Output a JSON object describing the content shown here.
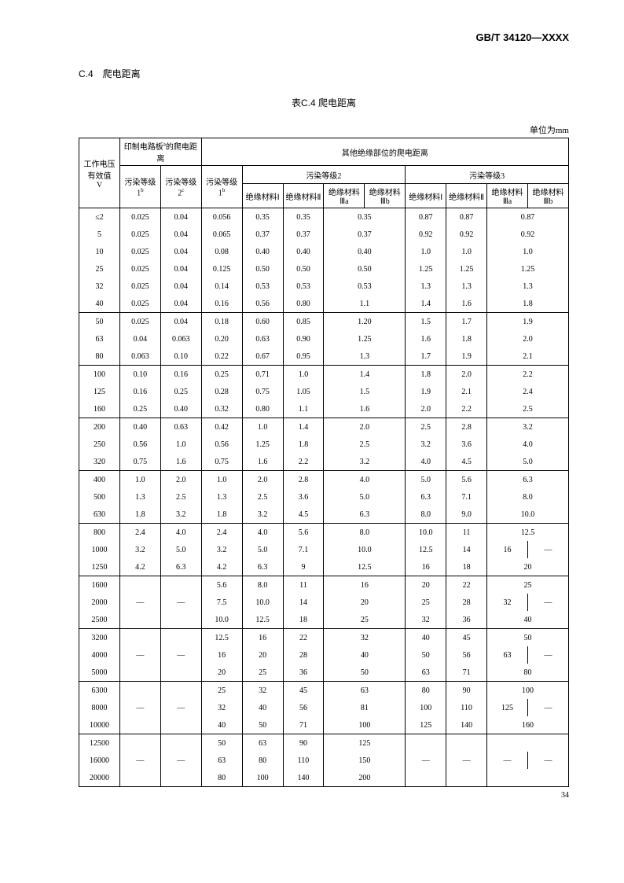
{
  "doc_id": "GB/T 34120—XXXX",
  "section_title": "C.4　爬电距离",
  "table_title": "表C.4 爬电距离",
  "unit_label": "单位为mm",
  "page_num": "34",
  "header": {
    "col_v": "工作电压有效值",
    "col_v_unit": "V",
    "pcb_group": "印制电路板",
    "pcb_group_suffix": "的爬电距离",
    "other_group": "其他绝缘部位的爬电距离",
    "pol_level1": "污染等级1",
    "pol_level2": "污染等级2",
    "pol_level3": "污染等级3",
    "pol_sup_b": "b",
    "pol_sup_c": "c",
    "mat1": "绝缘材料Ⅰ",
    "mat2": "绝缘材料Ⅱ",
    "mat3a": "绝缘材料Ⅲa",
    "mat3b": "绝缘材料Ⅲb",
    "pcb_sup_a": "a"
  },
  "groups": [
    {
      "rows": [
        {
          "v": "≤2",
          "c": [
            "0.025",
            "0.04",
            "0.056",
            "0.35",
            "0.35",
            "0.35",
            "",
            "0.87",
            "0.87",
            "0.87",
            ""
          ]
        },
        {
          "v": "5",
          "c": [
            "0.025",
            "0.04",
            "0.065",
            "0.37",
            "0.37",
            "0.37",
            "",
            "0.92",
            "0.92",
            "0.92",
            ""
          ]
        },
        {
          "v": "10",
          "c": [
            "0.025",
            "0.04",
            "0.08",
            "0.40",
            "0.40",
            "0.40",
            "",
            "1.0",
            "1.0",
            "1.0",
            ""
          ]
        },
        {
          "v": "25",
          "c": [
            "0.025",
            "0.04",
            "0.125",
            "0.50",
            "0.50",
            "0.50",
            "",
            "1.25",
            "1.25",
            "1.25",
            ""
          ]
        },
        {
          "v": "32",
          "c": [
            "0.025",
            "0.04",
            "0.14",
            "0.53",
            "0.53",
            "0.53",
            "",
            "1.3",
            "1.3",
            "1.3",
            ""
          ]
        },
        {
          "v": "40",
          "c": [
            "0.025",
            "0.04",
            "0.16",
            "0.56",
            "0.80",
            "1.1",
            "",
            "1.4",
            "1.6",
            "1.8",
            ""
          ]
        }
      ]
    },
    {
      "rows": [
        {
          "v": "50",
          "c": [
            "0.025",
            "0.04",
            "0.18",
            "0.60",
            "0.85",
            "1.20",
            "",
            "1.5",
            "1.7",
            "1.9",
            ""
          ]
        },
        {
          "v": "63",
          "c": [
            "0.04",
            "0.063",
            "0.20",
            "0.63",
            "0.90",
            "1.25",
            "",
            "1.6",
            "1.8",
            "2.0",
            ""
          ]
        },
        {
          "v": "80",
          "c": [
            "0.063",
            "0.10",
            "0.22",
            "0.67",
            "0.95",
            "1.3",
            "",
            "1.7",
            "1.9",
            "2.1",
            ""
          ]
        }
      ]
    },
    {
      "rows": [
        {
          "v": "100",
          "c": [
            "0.10",
            "0.16",
            "0.25",
            "0.71",
            "1.0",
            "1.4",
            "",
            "1.8",
            "2.0",
            "2.2",
            ""
          ]
        },
        {
          "v": "125",
          "c": [
            "0.16",
            "0.25",
            "0.28",
            "0.75",
            "1.05",
            "1.5",
            "",
            "1.9",
            "2.1",
            "2.4",
            ""
          ]
        },
        {
          "v": "160",
          "c": [
            "0.25",
            "0.40",
            "0.32",
            "0.80",
            "1.1",
            "1.6",
            "",
            "2.0",
            "2.2",
            "2.5",
            ""
          ]
        }
      ]
    },
    {
      "rows": [
        {
          "v": "200",
          "c": [
            "0.40",
            "0.63",
            "0.42",
            "1.0",
            "1.4",
            "2.0",
            "",
            "2.5",
            "2.8",
            "3.2",
            ""
          ]
        },
        {
          "v": "250",
          "c": [
            "0.56",
            "1.0",
            "0.56",
            "1.25",
            "1.8",
            "2.5",
            "",
            "3.2",
            "3.6",
            "4.0",
            ""
          ]
        },
        {
          "v": "320",
          "c": [
            "0.75",
            "1.6",
            "0.75",
            "1.6",
            "2.2",
            "3.2",
            "",
            "4.0",
            "4.5",
            "5.0",
            ""
          ]
        }
      ]
    },
    {
      "rows": [
        {
          "v": "400",
          "c": [
            "1.0",
            "2.0",
            "1.0",
            "2.0",
            "2.8",
            "4.0",
            "",
            "5.0",
            "5.6",
            "6.3",
            ""
          ]
        },
        {
          "v": "500",
          "c": [
            "1.3",
            "2.5",
            "1.3",
            "2.5",
            "3.6",
            "5.0",
            "",
            "6.3",
            "7.1",
            "8.0",
            ""
          ]
        },
        {
          "v": "630",
          "c": [
            "1.8",
            "3.2",
            "1.8",
            "3.2",
            "4.5",
            "6.3",
            "",
            "8.0",
            "9.0",
            "10.0",
            ""
          ]
        }
      ]
    },
    {
      "rows": [
        {
          "v": "800",
          "c": [
            "2.4",
            "4.0",
            "2.4",
            "4.0",
            "5.6",
            "8.0",
            "",
            "10.0",
            "11",
            "12.5",
            ""
          ]
        },
        {
          "v": "1000",
          "c": [
            "3.2",
            "5.0",
            "3.2",
            "5.0",
            "7.1",
            "10.0",
            "",
            "12.5",
            "14",
            "16",
            "—"
          ]
        },
        {
          "v": "1250",
          "c": [
            "4.2",
            "6.3",
            "4.2",
            "6.3",
            "9",
            "12.5",
            "",
            "16",
            "18",
            "20",
            ""
          ]
        }
      ]
    },
    {
      "rows": [
        {
          "v": "1600",
          "c": [
            "",
            "",
            "5.6",
            "8.0",
            "11",
            "16",
            "",
            "20",
            "22",
            "25",
            ""
          ]
        },
        {
          "v": "2000",
          "c": [
            "—",
            "—",
            "7.5",
            "10.0",
            "14",
            "20",
            "",
            "25",
            "28",
            "32",
            "—"
          ]
        },
        {
          "v": "2500",
          "c": [
            "",
            "",
            "10.0",
            "12.5",
            "18",
            "25",
            "",
            "32",
            "36",
            "40",
            ""
          ]
        }
      ]
    },
    {
      "rows": [
        {
          "v": "3200",
          "c": [
            "",
            "",
            "12.5",
            "16",
            "22",
            "32",
            "",
            "40",
            "45",
            "50",
            ""
          ]
        },
        {
          "v": "4000",
          "c": [
            "—",
            "—",
            "16",
            "20",
            "28",
            "40",
            "",
            "50",
            "56",
            "63",
            "—"
          ]
        },
        {
          "v": "5000",
          "c": [
            "",
            "",
            "20",
            "25",
            "36",
            "50",
            "",
            "63",
            "71",
            "80",
            ""
          ]
        }
      ]
    },
    {
      "rows": [
        {
          "v": "6300",
          "c": [
            "",
            "",
            "25",
            "32",
            "45",
            "63",
            "",
            "80",
            "90",
            "100",
            ""
          ]
        },
        {
          "v": "8000",
          "c": [
            "—",
            "—",
            "32",
            "40",
            "56",
            "81",
            "",
            "100",
            "110",
            "125",
            "—"
          ]
        },
        {
          "v": "10000",
          "c": [
            "",
            "",
            "40",
            "50",
            "71",
            "100",
            "",
            "125",
            "140",
            "160",
            ""
          ]
        }
      ]
    },
    {
      "rows": [
        {
          "v": "12500",
          "c": [
            "",
            "",
            "50",
            "63",
            "90",
            "125",
            "",
            "",
            "",
            "",
            ""
          ]
        },
        {
          "v": "16000",
          "c": [
            "—",
            "—",
            "63",
            "80",
            "110",
            "150",
            "",
            "—",
            "—",
            "—",
            "—"
          ]
        },
        {
          "v": "20000",
          "c": [
            "",
            "",
            "80",
            "100",
            "140",
            "200",
            "",
            "",
            "",
            "",
            ""
          ]
        }
      ]
    }
  ]
}
